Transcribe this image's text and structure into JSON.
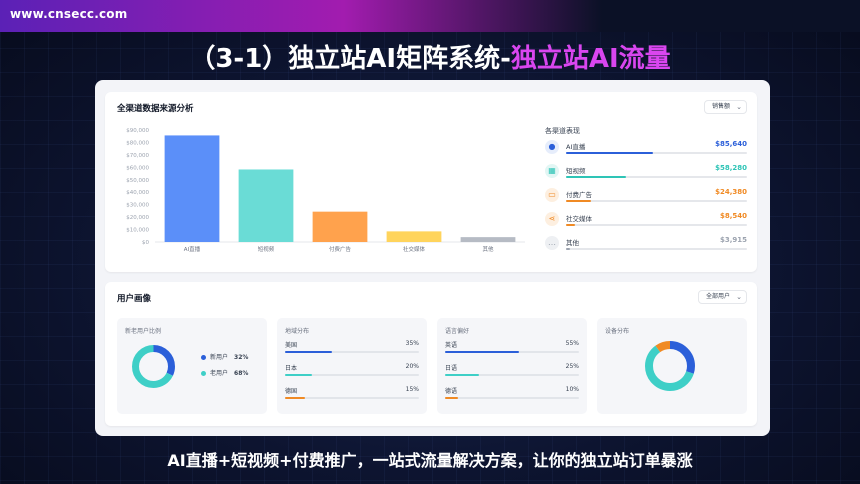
{
  "header": {
    "site_url": "www.cnsecc.com",
    "headline_main": "（3-1）独立站AI矩阵系统-",
    "headline_accent": "独立站AI流量"
  },
  "colors": {
    "blue": "#5b8ff9",
    "teal": "#6adcd6",
    "orange": "#ffa24d",
    "yellow": "#ffd45c",
    "gray": "#b6bbc4",
    "accent_purple": "#d946ef"
  },
  "source_panel": {
    "title": "全渠道数据来源分析",
    "dropdown": "销售额",
    "channels_title": "各渠道表现",
    "channels": [
      {
        "name": "AI直播",
        "value": "$85,640",
        "fraction": 0.48,
        "color": "#2b5fd9",
        "icon": "play-icon"
      },
      {
        "name": "短视频",
        "value": "$58,280",
        "fraction": 0.33,
        "color": "#2ec4b6",
        "icon": "video-icon"
      },
      {
        "name": "付费广告",
        "value": "$24,380",
        "fraction": 0.14,
        "color": "#f08a24",
        "icon": "card-icon"
      },
      {
        "name": "社交媒体",
        "value": "$8,540",
        "fraction": 0.05,
        "color": "#f08a24",
        "icon": "share-icon"
      },
      {
        "name": "其他",
        "value": "$3,915",
        "fraction": 0.02,
        "color": "#9ca3af",
        "icon": "more-icon"
      }
    ]
  },
  "chart_data": {
    "type": "bar",
    "categories": [
      "AI直播",
      "短视频",
      "付费广告",
      "社交媒体",
      "其他"
    ],
    "values": [
      85640,
      58280,
      24380,
      8540,
      3915
    ],
    "colors": [
      "#5b8ff9",
      "#6adcd6",
      "#ffa24d",
      "#ffd45c",
      "#b6bbc4"
    ],
    "yticks": [
      "$0",
      "$10,000",
      "$20,000",
      "$30,000",
      "$40,000",
      "$50,000",
      "$60,000",
      "$70,000",
      "$80,000",
      "$90,000"
    ],
    "ylim": [
      0,
      90000
    ],
    "grid": false,
    "title": "",
    "xlabel": "",
    "ylabel": ""
  },
  "persona_panel": {
    "title": "用户画像",
    "dropdown": "全部用户",
    "new_old": {
      "title": "新老用户比例",
      "items": [
        {
          "label": "新用户",
          "value": "32%",
          "fraction": 0.32,
          "color": "#2b5fd9"
        },
        {
          "label": "老用户",
          "value": "68%",
          "fraction": 0.68,
          "color": "#3ecfc7"
        }
      ]
    },
    "region": {
      "title": "地域分布",
      "color": "#2b5fd9",
      "items": [
        {
          "label": "美国",
          "value": "35%",
          "fraction": 0.35
        },
        {
          "label": "日本",
          "value": "20%",
          "fraction": 0.2
        },
        {
          "label": "德国",
          "value": "15%",
          "fraction": 0.15
        }
      ]
    },
    "language": {
      "title": "语言偏好",
      "color": "#2b5fd9",
      "items": [
        {
          "label": "英语",
          "value": "55%",
          "fraction": 0.55
        },
        {
          "label": "日语",
          "value": "25%",
          "fraction": 0.25
        },
        {
          "label": "德语",
          "value": "10%",
          "fraction": 0.1
        }
      ]
    },
    "device": {
      "title": "设备分布",
      "segments": [
        {
          "fraction": 0.3,
          "color": "#2b5fd9"
        },
        {
          "fraction": 0.6,
          "color": "#3ecfc7"
        },
        {
          "fraction": 0.1,
          "color": "#f08a24"
        }
      ]
    },
    "bar_colors": [
      "#2b5fd9",
      "#3ecfc7",
      "#f08a24"
    ]
  },
  "footer": {
    "tagline": "AI直播+短视频+付费推广，一站式流量解决方案，让你的独立站订单暴涨"
  }
}
